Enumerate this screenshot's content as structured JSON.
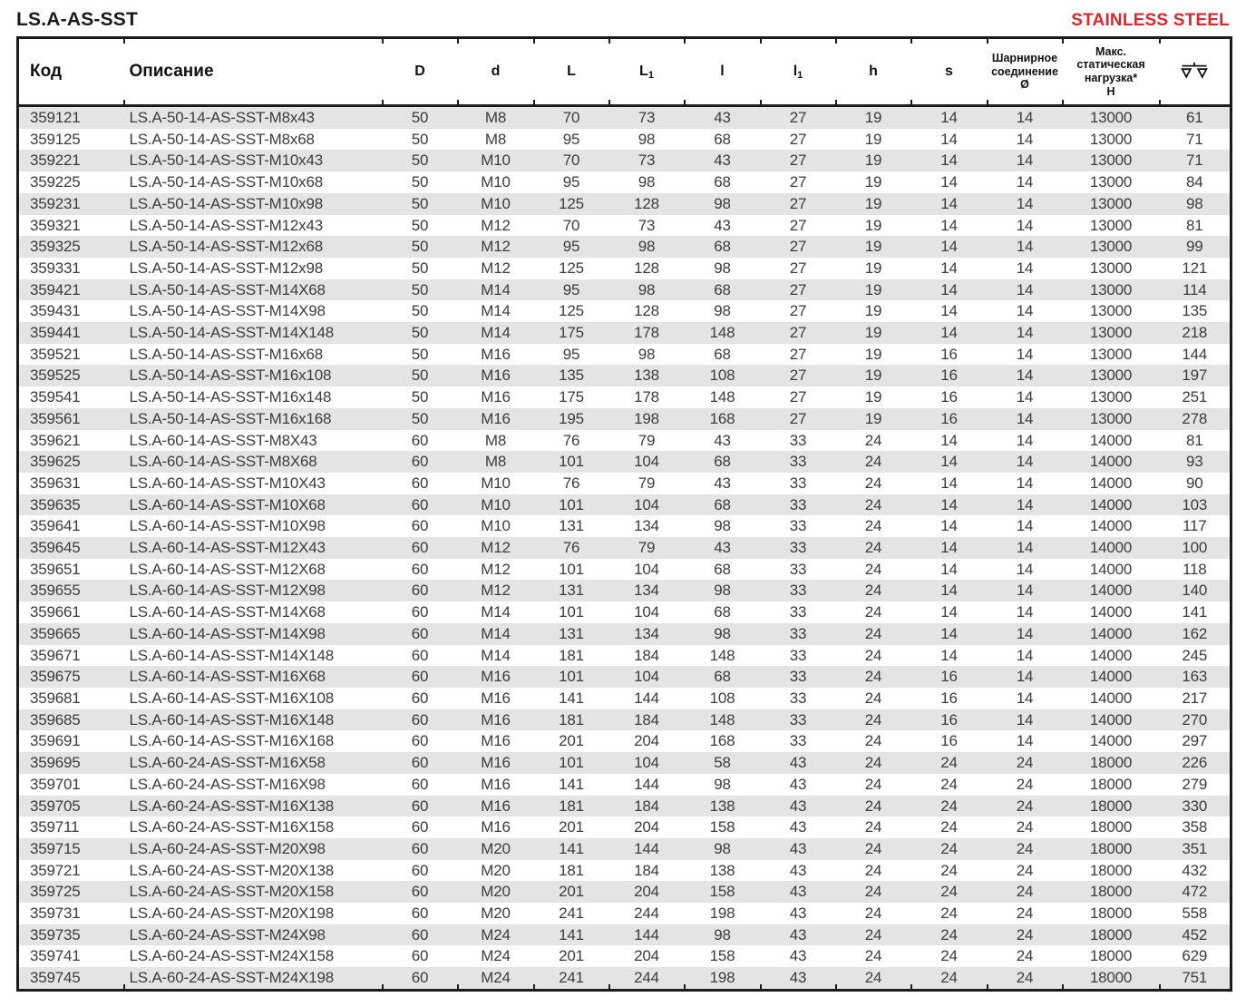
{
  "page": {
    "title": "LS.A-AS-SST",
    "badge": "STAINLESS STEEL",
    "badge_color": "#e2242b",
    "stripe_color": "#e4e4e4"
  },
  "table": {
    "columns": [
      {
        "id": "code",
        "label": "Код"
      },
      {
        "id": "desc",
        "label": "Описание"
      },
      {
        "id": "D",
        "label": "D"
      },
      {
        "id": "d",
        "label": "d"
      },
      {
        "id": "L",
        "label": "L"
      },
      {
        "id": "L1",
        "base": "L",
        "sub": "1"
      },
      {
        "id": "l",
        "label": "l"
      },
      {
        "id": "l1",
        "base": "l",
        "sub": "1"
      },
      {
        "id": "h",
        "label": "h"
      },
      {
        "id": "s",
        "label": "s"
      },
      {
        "id": "hinge",
        "label": "Шарнирное соединение Ø",
        "lines": [
          "Шарнирное",
          "соединение",
          "Ø"
        ]
      },
      {
        "id": "load",
        "label": "Макс. статическая нагрузка* Н",
        "lines": [
          "Макс.",
          "статическая",
          "нагрузка*",
          "Н"
        ]
      },
      {
        "id": "weight",
        "label": "",
        "icon": "scales-icon"
      }
    ],
    "rows": [
      [
        "359121",
        "LS.A-50-14-AS-SST-M8x43",
        "50",
        "M8",
        "70",
        "73",
        "43",
        "27",
        "19",
        "14",
        "14",
        "13000",
        "61"
      ],
      [
        "359125",
        "LS.A-50-14-AS-SST-M8x68",
        "50",
        "M8",
        "95",
        "98",
        "68",
        "27",
        "19",
        "14",
        "14",
        "13000",
        "71"
      ],
      [
        "359221",
        "LS.A-50-14-AS-SST-M10x43",
        "50",
        "M10",
        "70",
        "73",
        "43",
        "27",
        "19",
        "14",
        "14",
        "13000",
        "71"
      ],
      [
        "359225",
        "LS.A-50-14-AS-SST-M10x68",
        "50",
        "M10",
        "95",
        "98",
        "68",
        "27",
        "19",
        "14",
        "14",
        "13000",
        "84"
      ],
      [
        "359231",
        "LS.A-50-14-AS-SST-M10x98",
        "50",
        "M10",
        "125",
        "128",
        "98",
        "27",
        "19",
        "14",
        "14",
        "13000",
        "98"
      ],
      [
        "359321",
        "LS.A-50-14-AS-SST-M12x43",
        "50",
        "M12",
        "70",
        "73",
        "43",
        "27",
        "19",
        "14",
        "14",
        "13000",
        "81"
      ],
      [
        "359325",
        "LS.A-50-14-AS-SST-M12x68",
        "50",
        "M12",
        "95",
        "98",
        "68",
        "27",
        "19",
        "14",
        "14",
        "13000",
        "99"
      ],
      [
        "359331",
        "LS.A-50-14-AS-SST-M12x98",
        "50",
        "M12",
        "125",
        "128",
        "98",
        "27",
        "19",
        "14",
        "14",
        "13000",
        "121"
      ],
      [
        "359421",
        "LS.A-50-14-AS-SST-M14X68",
        "50",
        "M14",
        "95",
        "98",
        "68",
        "27",
        "19",
        "14",
        "14",
        "13000",
        "114"
      ],
      [
        "359431",
        "LS.A-50-14-AS-SST-M14X98",
        "50",
        "M14",
        "125",
        "128",
        "98",
        "27",
        "19",
        "14",
        "14",
        "13000",
        "135"
      ],
      [
        "359441",
        "LS.A-50-14-AS-SST-M14X148",
        "50",
        "M14",
        "175",
        "178",
        "148",
        "27",
        "19",
        "14",
        "14",
        "13000",
        "218"
      ],
      [
        "359521",
        "LS.A-50-14-AS-SST-M16x68",
        "50",
        "M16",
        "95",
        "98",
        "68",
        "27",
        "19",
        "16",
        "14",
        "13000",
        "144"
      ],
      [
        "359525",
        "LS.A-50-14-AS-SST-M16x108",
        "50",
        "M16",
        "135",
        "138",
        "108",
        "27",
        "19",
        "16",
        "14",
        "13000",
        "197"
      ],
      [
        "359541",
        "LS.A-50-14-AS-SST-M16x148",
        "50",
        "M16",
        "175",
        "178",
        "148",
        "27",
        "19",
        "16",
        "14",
        "13000",
        "251"
      ],
      [
        "359561",
        "LS.A-50-14-AS-SST-M16x168",
        "50",
        "M16",
        "195",
        "198",
        "168",
        "27",
        "19",
        "16",
        "14",
        "13000",
        "278"
      ],
      [
        "359621",
        "LS.A-60-14-AS-SST-M8X43",
        "60",
        "M8",
        "76",
        "79",
        "43",
        "33",
        "24",
        "14",
        "14",
        "14000",
        "81"
      ],
      [
        "359625",
        "LS.A-60-14-AS-SST-M8X68",
        "60",
        "M8",
        "101",
        "104",
        "68",
        "33",
        "24",
        "14",
        "14",
        "14000",
        "93"
      ],
      [
        "359631",
        "LS.A-60-14-AS-SST-M10X43",
        "60",
        "M10",
        "76",
        "79",
        "43",
        "33",
        "24",
        "14",
        "14",
        "14000",
        "90"
      ],
      [
        "359635",
        "LS.A-60-14-AS-SST-M10X68",
        "60",
        "M10",
        "101",
        "104",
        "68",
        "33",
        "24",
        "14",
        "14",
        "14000",
        "103"
      ],
      [
        "359641",
        "LS.A-60-14-AS-SST-M10X98",
        "60",
        "M10",
        "131",
        "134",
        "98",
        "33",
        "24",
        "14",
        "14",
        "14000",
        "117"
      ],
      [
        "359645",
        "LS.A-60-14-AS-SST-M12X43",
        "60",
        "M12",
        "76",
        "79",
        "43",
        "33",
        "24",
        "14",
        "14",
        "14000",
        "100"
      ],
      [
        "359651",
        "LS.A-60-14-AS-SST-M12X68",
        "60",
        "M12",
        "101",
        "104",
        "68",
        "33",
        "24",
        "14",
        "14",
        "14000",
        "118"
      ],
      [
        "359655",
        "LS.A-60-14-AS-SST-M12X98",
        "60",
        "M12",
        "131",
        "134",
        "98",
        "33",
        "24",
        "14",
        "14",
        "14000",
        "140"
      ],
      [
        "359661",
        "LS.A-60-14-AS-SST-M14X68",
        "60",
        "M14",
        "101",
        "104",
        "68",
        "33",
        "24",
        "14",
        "14",
        "14000",
        "141"
      ],
      [
        "359665",
        "LS.A-60-14-AS-SST-M14X98",
        "60",
        "M14",
        "131",
        "134",
        "98",
        "33",
        "24",
        "14",
        "14",
        "14000",
        "162"
      ],
      [
        "359671",
        "LS.A-60-14-AS-SST-M14X148",
        "60",
        "M14",
        "181",
        "184",
        "148",
        "33",
        "24",
        "14",
        "14",
        "14000",
        "245"
      ],
      [
        "359675",
        "LS.A-60-14-AS-SST-M16X68",
        "60",
        "M16",
        "101",
        "104",
        "68",
        "33",
        "24",
        "16",
        "14",
        "14000",
        "163"
      ],
      [
        "359681",
        "LS.A-60-14-AS-SST-M16X108",
        "60",
        "M16",
        "141",
        "144",
        "108",
        "33",
        "24",
        "16",
        "14",
        "14000",
        "217"
      ],
      [
        "359685",
        "LS.A-60-14-AS-SST-M16X148",
        "60",
        "M16",
        "181",
        "184",
        "148",
        "33",
        "24",
        "16",
        "14",
        "14000",
        "270"
      ],
      [
        "359691",
        "LS.A-60-14-AS-SST-M16X168",
        "60",
        "M16",
        "201",
        "204",
        "168",
        "33",
        "24",
        "16",
        "14",
        "14000",
        "297"
      ],
      [
        "359695",
        "LS.A-60-24-AS-SST-M16X58",
        "60",
        "M16",
        "101",
        "104",
        "58",
        "43",
        "24",
        "24",
        "24",
        "18000",
        "226"
      ],
      [
        "359701",
        "LS.A-60-24-AS-SST-M16X98",
        "60",
        "M16",
        "141",
        "144",
        "98",
        "43",
        "24",
        "24",
        "24",
        "18000",
        "279"
      ],
      [
        "359705",
        "LS.A-60-24-AS-SST-M16X138",
        "60",
        "M16",
        "181",
        "184",
        "138",
        "43",
        "24",
        "24",
        "24",
        "18000",
        "330"
      ],
      [
        "359711",
        "LS.A-60-24-AS-SST-M16X158",
        "60",
        "M16",
        "201",
        "204",
        "158",
        "43",
        "24",
        "24",
        "24",
        "18000",
        "358"
      ],
      [
        "359715",
        "LS.A-60-24-AS-SST-M20X98",
        "60",
        "M20",
        "141",
        "144",
        "98",
        "43",
        "24",
        "24",
        "24",
        "18000",
        "351"
      ],
      [
        "359721",
        "LS.A-60-24-AS-SST-M20X138",
        "60",
        "M20",
        "181",
        "184",
        "138",
        "43",
        "24",
        "24",
        "24",
        "18000",
        "432"
      ],
      [
        "359725",
        "LS.A-60-24-AS-SST-M20X158",
        "60",
        "M20",
        "201",
        "204",
        "158",
        "43",
        "24",
        "24",
        "24",
        "18000",
        "472"
      ],
      [
        "359731",
        "LS.A-60-24-AS-SST-M20X198",
        "60",
        "M20",
        "241",
        "244",
        "198",
        "43",
        "24",
        "24",
        "24",
        "18000",
        "558"
      ],
      [
        "359735",
        "LS.A-60-24-AS-SST-M24X98",
        "60",
        "M24",
        "141",
        "144",
        "98",
        "43",
        "24",
        "24",
        "24",
        "18000",
        "452"
      ],
      [
        "359741",
        "LS.A-60-24-AS-SST-M24X158",
        "60",
        "M24",
        "201",
        "204",
        "158",
        "43",
        "24",
        "24",
        "24",
        "18000",
        "629"
      ],
      [
        "359745",
        "LS.A-60-24-AS-SST-M24X198",
        "60",
        "M24",
        "241",
        "244",
        "198",
        "43",
        "24",
        "24",
        "24",
        "18000",
        "751"
      ]
    ]
  }
}
